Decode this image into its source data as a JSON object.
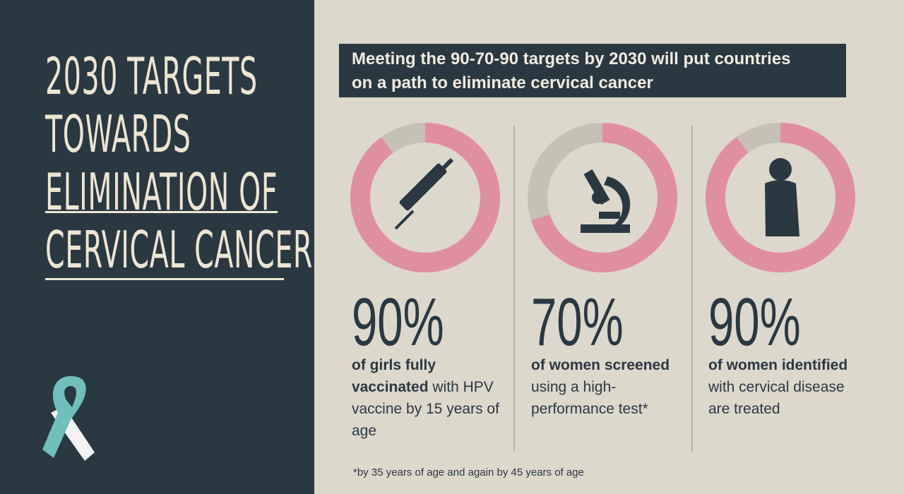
{
  "title": {
    "lines": [
      "2030 TARGETS",
      "TOWARDS",
      "ELIMINATION OF",
      "CERVICAL CANCER"
    ]
  },
  "header": {
    "lines": [
      "Meeting the 90-70-90 targets by 2030 will put countries",
      "on a path to eliminate cervical cancer"
    ]
  },
  "targets": [
    {
      "value": 90,
      "value_label": "90%",
      "bold": "of girls fully vaccinated",
      "text": " with HPV vaccine by 15 years of age"
    },
    {
      "value": 70,
      "value_label": "70%",
      "bold": "of women screened",
      "text": " using a high-performance test*"
    },
    {
      "value": 90,
      "value_label": "90%",
      "bold": "of women identified",
      "text": " with cervical disease are treated"
    }
  ],
  "footnote": "*by 35 years of age and again by 45 years of age"
}
